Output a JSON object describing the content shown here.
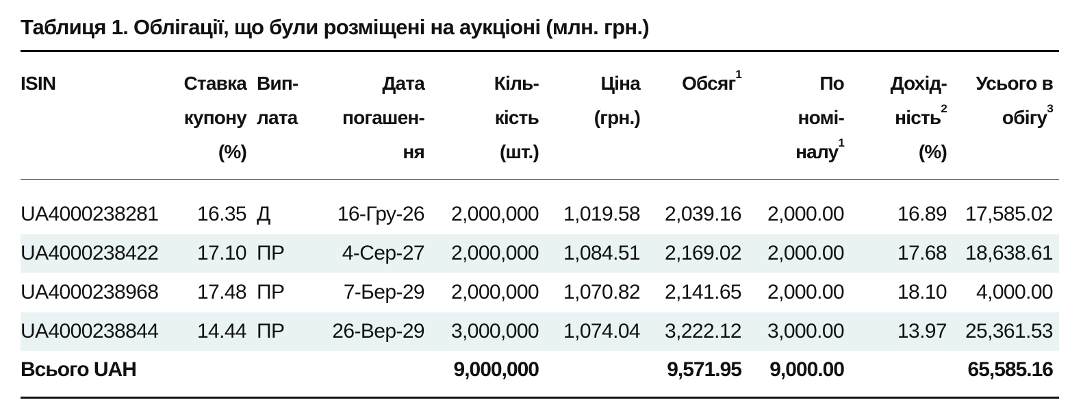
{
  "title": "Таблиця 1. Облігації, що були розміщені на аукціоні (млн. грн.)",
  "table": {
    "header": [
      {
        "lines": [
          "ISIN"
        ]
      },
      {
        "lines": [
          "Ставка",
          "купону",
          "(%)"
        ]
      },
      {
        "lines": [
          "Вип-",
          "лата"
        ]
      },
      {
        "lines": [
          "Дата",
          "погашен-",
          "ня"
        ]
      },
      {
        "lines": [
          "Кіль-",
          "кість",
          "(шт.)"
        ]
      },
      {
        "lines": [
          "Ціна",
          "(грн.)"
        ]
      },
      {
        "lines": [
          "Обсяг"
        ],
        "sup": "1"
      },
      {
        "lines": [
          "По",
          "номі-",
          "налу"
        ],
        "sup": "1"
      },
      {
        "lines": [
          "Дохід-",
          "ність",
          "(%)"
        ],
        "sup_line": 1,
        "sup": "2"
      },
      {
        "lines": [
          "Усього в",
          "обігу"
        ],
        "sup": "3"
      }
    ],
    "rows": [
      [
        "UA4000238281",
        "16.35",
        "Д",
        "16-Гру-26",
        "2,000,000",
        "1,019.58",
        "2,039.16",
        "2,000.00",
        "16.89",
        "17,585.02"
      ],
      [
        "UA4000238422",
        "17.10",
        "ПР",
        "4-Сер-27",
        "2,000,000",
        "1,084.51",
        "2,169.02",
        "2,000.00",
        "17.68",
        "18,638.61"
      ],
      [
        "UA4000238968",
        "17.48",
        "ПР",
        "7-Бер-29",
        "2,000,000",
        "1,070.82",
        "2,141.65",
        "2,000.00",
        "18.10",
        "4,000.00"
      ],
      [
        "UA4000238844",
        "14.44",
        "ПР",
        "26-Вер-29",
        "3,000,000",
        "1,074.04",
        "3,222.12",
        "3,000.00",
        "13.97",
        "25,361.53"
      ]
    ],
    "total": [
      "Всього UAH",
      null,
      null,
      null,
      "9,000,000",
      null,
      "9,571.95",
      "9,000.00",
      null,
      "65,585.16"
    ]
  }
}
